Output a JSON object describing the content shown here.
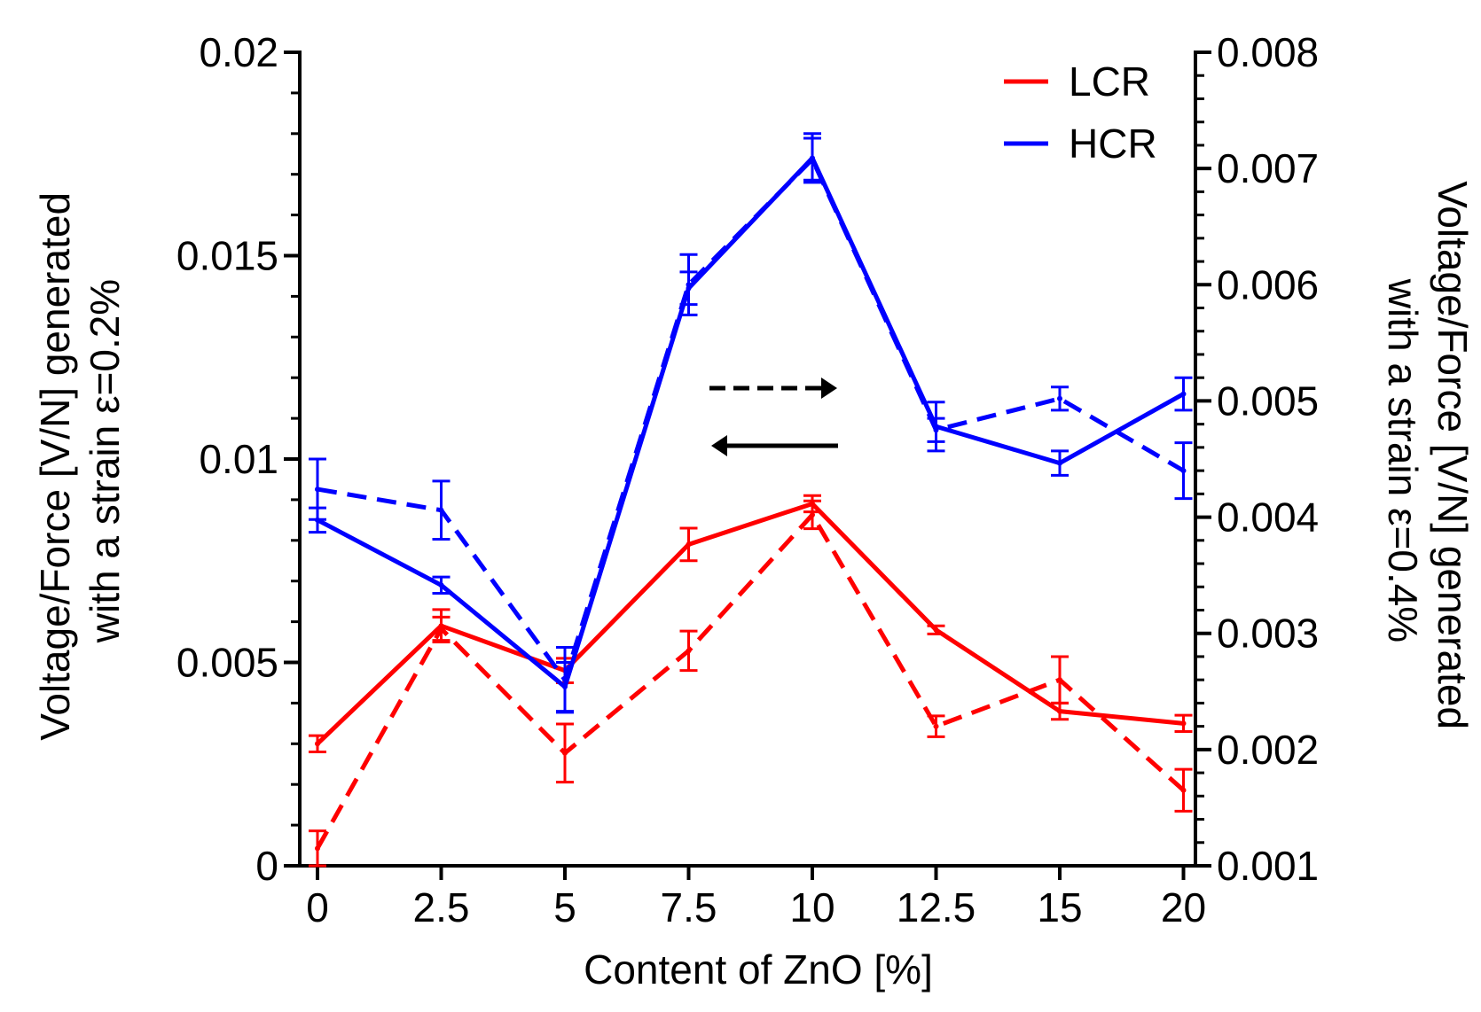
{
  "chart_data": {
    "type": "line",
    "xlabel": "Content of ZnO [%]",
    "ylabel_left": [
      "Voltage/Force [V/N] generated",
      "with a strain ε=0.2%"
    ],
    "ylabel_right": [
      "Voltage/Force [V/N] generated",
      "with a strain ε=0.4%"
    ],
    "categories": [
      "0",
      "2.5",
      "5",
      "7.5",
      "10",
      "12.5",
      "15",
      "20"
    ],
    "y_left": {
      "lim": [
        0,
        0.02
      ],
      "ticks": [
        "0",
        "0.005",
        "0.01",
        "0.015",
        "0.02"
      ],
      "tick_values": [
        0,
        0.005,
        0.01,
        0.015,
        0.02
      ]
    },
    "y_right": {
      "lim": [
        0.001,
        0.008
      ],
      "ticks": [
        "0.001",
        "0.002",
        "0.003",
        "0.004",
        "0.005",
        "0.006",
        "0.007",
        "0.008"
      ],
      "tick_values": [
        0.001,
        0.002,
        0.003,
        0.004,
        0.005,
        0.006,
        0.007,
        0.008
      ]
    },
    "legend": {
      "position": "top-right",
      "entries": [
        {
          "label": "LCR",
          "color": "#ff0000"
        },
        {
          "label": "HCR",
          "color": "#0000ff"
        }
      ]
    },
    "series": [
      {
        "name": "LCR ε=0.2%",
        "color": "#ff0000",
        "dash": "solid",
        "axis": "left",
        "values": [
          0.003,
          0.0059,
          0.0048,
          0.0079,
          0.0089,
          0.0058,
          0.0038,
          0.0035
        ],
        "errors": [
          0.0002,
          0.0004,
          0.0003,
          0.0004,
          0.0002,
          0.0001,
          0.0002,
          0.0002
        ]
      },
      {
        "name": "LCR ε=0.4%",
        "color": "#ff0000",
        "dash": "dashed",
        "axis": "right",
        "values": [
          0.00115,
          0.00304,
          0.00197,
          0.00285,
          0.00402,
          0.0022,
          0.0026,
          0.00165
        ],
        "errors": [
          0.00015,
          0.0001,
          0.00025,
          0.00017,
          0.00012,
          9e-05,
          0.0002,
          0.00018
        ]
      },
      {
        "name": "HCR ε=0.2%",
        "color": "#0000ff",
        "dash": "solid",
        "axis": "left",
        "values": [
          0.0085,
          0.0069,
          0.0044,
          0.0142,
          0.0174,
          0.0108,
          0.0099,
          0.0116
        ],
        "errors": [
          0.0003,
          0.0002,
          0.0006,
          0.0004,
          0.0006,
          0.0006,
          0.0003,
          0.0004
        ]
      },
      {
        "name": "HCR ε=0.4%",
        "color": "#0000ff",
        "dash": "dashed",
        "axis": "right",
        "values": [
          0.00424,
          0.00406,
          0.0026,
          0.006,
          0.00708,
          0.00475,
          0.00502,
          0.0044
        ],
        "errors": [
          0.00026,
          0.00025,
          0.00028,
          0.00026,
          0.00018,
          0.0001,
          0.0001,
          0.00024
        ]
      }
    ],
    "annotations": [
      {
        "type": "arrow",
        "direction": "right",
        "style": "dashed",
        "meaning": "series belongs to right axis"
      },
      {
        "type": "arrow",
        "direction": "left",
        "style": "solid",
        "meaning": "series belongs to left axis"
      }
    ]
  }
}
